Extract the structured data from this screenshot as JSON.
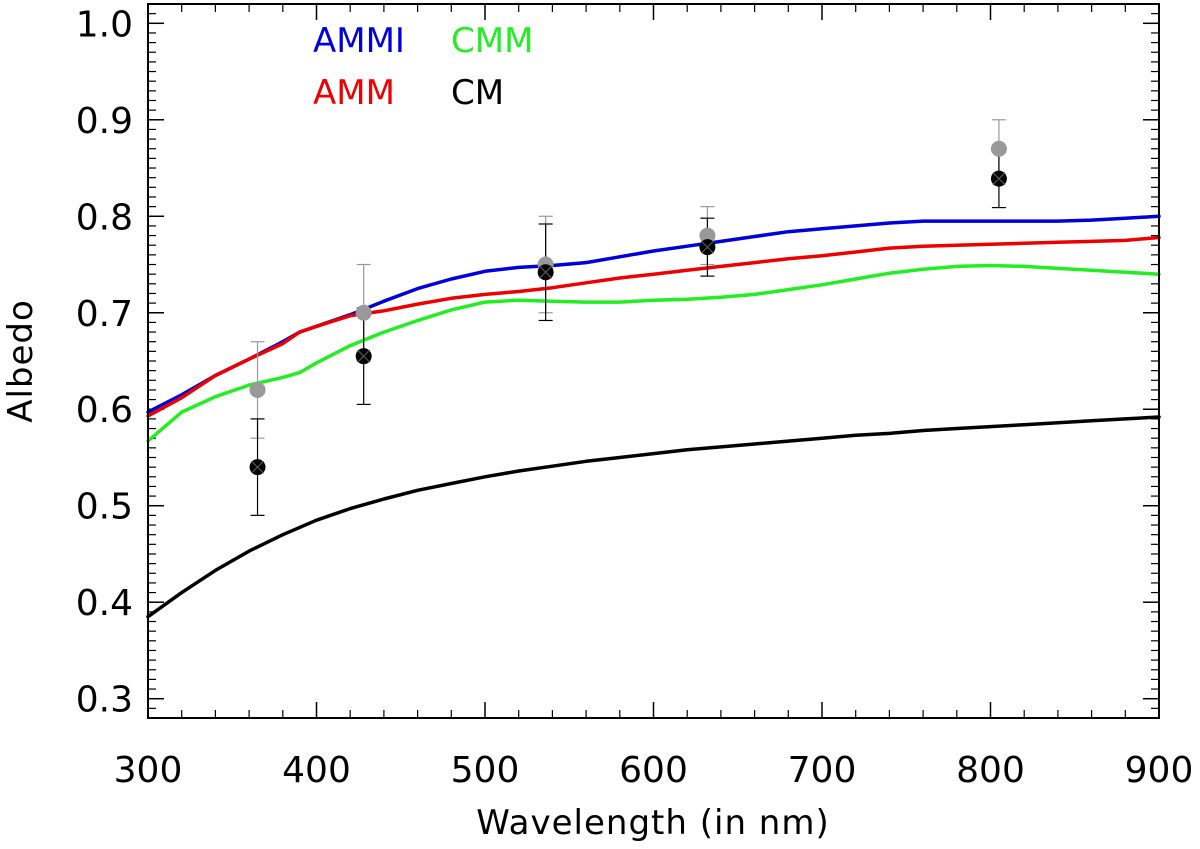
{
  "chart_data": {
    "type": "line",
    "xlabel": "Wavelength (in nm)",
    "ylabel": "Albedo",
    "xlim": [
      300,
      900
    ],
    "ylim": [
      0.28,
      1.02
    ],
    "x_ticks": [
      300,
      400,
      500,
      600,
      700,
      800,
      900
    ],
    "x_tick_labels": [
      "300",
      "400",
      "500",
      "600",
      "700",
      "800",
      "900"
    ],
    "y_ticks": [
      0.3,
      0.4,
      0.5,
      0.6,
      0.7,
      0.8,
      0.9,
      1.0
    ],
    "y_tick_labels": [
      "0.3",
      "0.4",
      "0.5",
      "0.6",
      "0.7",
      "0.8",
      "0.9",
      "1.0"
    ],
    "grid": false,
    "legend_position": "top-left",
    "series": [
      {
        "name": "AMMI",
        "color": "#0000dd",
        "x": [
          300,
          320,
          340,
          360,
          380,
          390,
          400,
          420,
          440,
          460,
          480,
          500,
          520,
          540,
          560,
          580,
          600,
          620,
          640,
          660,
          680,
          700,
          720,
          740,
          760,
          780,
          800,
          820,
          840,
          860,
          880,
          900
        ],
        "y": [
          0.597,
          0.615,
          0.635,
          0.652,
          0.67,
          0.68,
          0.686,
          0.698,
          0.712,
          0.725,
          0.735,
          0.743,
          0.747,
          0.749,
          0.752,
          0.758,
          0.764,
          0.769,
          0.774,
          0.779,
          0.784,
          0.787,
          0.79,
          0.793,
          0.795,
          0.795,
          0.795,
          0.795,
          0.795,
          0.796,
          0.798,
          0.8
        ]
      },
      {
        "name": "AMM",
        "color": "#ee0000",
        "x": [
          300,
          320,
          340,
          360,
          380,
          390,
          400,
          420,
          440,
          460,
          480,
          500,
          520,
          540,
          560,
          580,
          600,
          620,
          640,
          660,
          680,
          700,
          720,
          740,
          760,
          780,
          800,
          820,
          840,
          860,
          880,
          900
        ],
        "y": [
          0.593,
          0.612,
          0.635,
          0.652,
          0.668,
          0.68,
          0.686,
          0.697,
          0.702,
          0.709,
          0.715,
          0.719,
          0.722,
          0.726,
          0.731,
          0.736,
          0.74,
          0.744,
          0.748,
          0.752,
          0.756,
          0.759,
          0.763,
          0.767,
          0.769,
          0.77,
          0.771,
          0.772,
          0.773,
          0.774,
          0.775,
          0.778
        ]
      },
      {
        "name": "CMM",
        "color": "#22ee22",
        "x": [
          300,
          320,
          340,
          360,
          380,
          390,
          400,
          420,
          440,
          460,
          480,
          500,
          520,
          540,
          560,
          580,
          600,
          620,
          640,
          660,
          680,
          700,
          720,
          740,
          760,
          780,
          800,
          820,
          840,
          860,
          880,
          900
        ],
        "y": [
          0.567,
          0.597,
          0.613,
          0.625,
          0.633,
          0.638,
          0.648,
          0.666,
          0.68,
          0.692,
          0.703,
          0.711,
          0.713,
          0.712,
          0.711,
          0.711,
          0.713,
          0.714,
          0.716,
          0.719,
          0.724,
          0.729,
          0.735,
          0.741,
          0.745,
          0.748,
          0.749,
          0.748,
          0.746,
          0.744,
          0.742,
          0.74
        ]
      },
      {
        "name": "CM",
        "color": "#000000",
        "x": [
          300,
          320,
          340,
          360,
          380,
          400,
          420,
          440,
          460,
          480,
          500,
          520,
          540,
          560,
          580,
          600,
          620,
          640,
          660,
          680,
          700,
          720,
          740,
          760,
          780,
          800,
          820,
          840,
          860,
          880,
          900
        ],
        "y": [
          0.385,
          0.41,
          0.433,
          0.453,
          0.47,
          0.485,
          0.497,
          0.507,
          0.516,
          0.523,
          0.53,
          0.536,
          0.541,
          0.546,
          0.55,
          0.554,
          0.558,
          0.561,
          0.564,
          0.567,
          0.57,
          0.573,
          0.575,
          0.578,
          0.58,
          0.582,
          0.584,
          0.586,
          0.588,
          0.59,
          0.592
        ]
      }
    ],
    "observations": [
      {
        "name": "gray",
        "color": "#999999",
        "points": [
          {
            "x": 365,
            "y": 0.62,
            "err": 0.05
          },
          {
            "x": 428,
            "y": 0.7,
            "err": 0.05
          },
          {
            "x": 536,
            "y": 0.75,
            "err": 0.05
          },
          {
            "x": 632,
            "y": 0.78,
            "err": 0.03
          },
          {
            "x": 805,
            "y": 0.87,
            "err": 0.03
          }
        ]
      },
      {
        "name": "black",
        "color": "#000000",
        "points": [
          {
            "x": 365,
            "y": 0.54,
            "err": 0.05
          },
          {
            "x": 428,
            "y": 0.655,
            "err": 0.05
          },
          {
            "x": 536,
            "y": 0.742,
            "err": 0.05
          },
          {
            "x": 632,
            "y": 0.768,
            "err": 0.03
          },
          {
            "x": 805,
            "y": 0.839,
            "err": 0.03
          }
        ]
      }
    ],
    "legend": [
      {
        "label": "AMMI",
        "color": "#0000dd"
      },
      {
        "label": "CMM",
        "color": "#22ee22"
      },
      {
        "label": "AMM",
        "color": "#ee0000"
      },
      {
        "label": "CM",
        "color": "#000000"
      }
    ]
  }
}
